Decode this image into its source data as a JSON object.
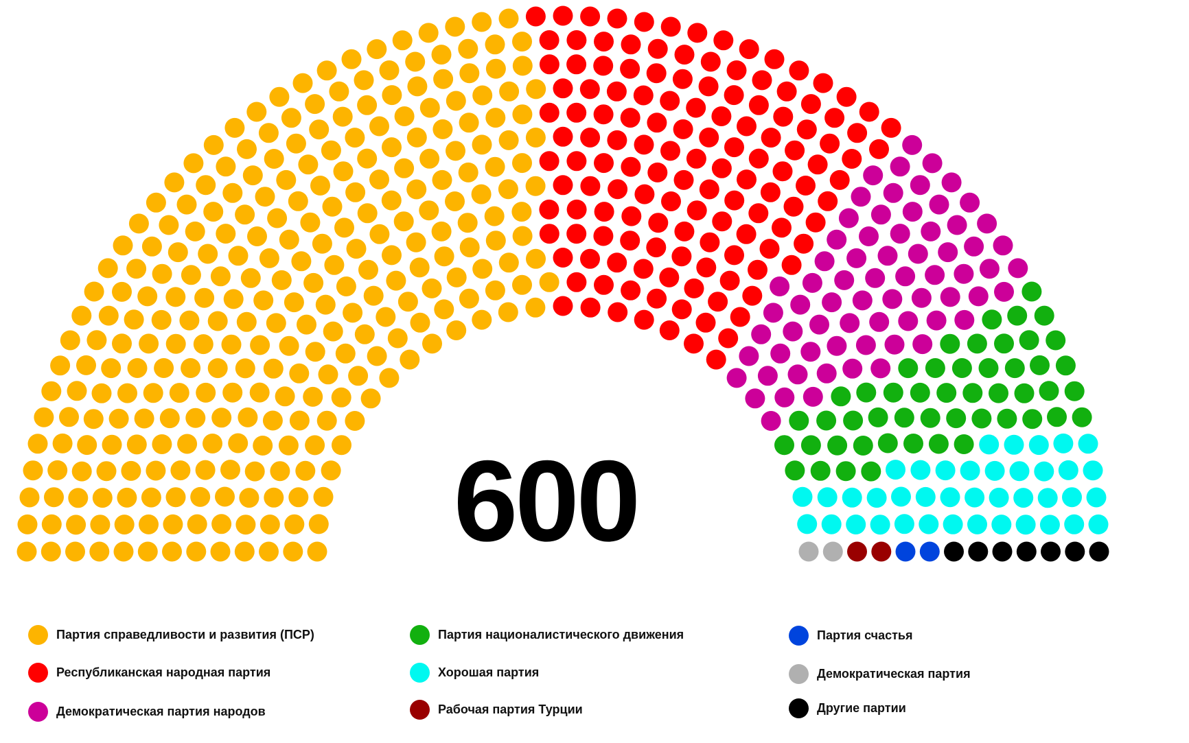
{
  "chart_data": {
    "type": "pie",
    "total_label": "600",
    "total": 600,
    "series": [
      {
        "name": "Партия справедливости и развития (ПСР)",
        "value": 290,
        "color": "#FDB400"
      },
      {
        "name": "Республиканская народная партия",
        "value": 138,
        "color": "#FF0000"
      },
      {
        "name": "Демократическая партия народов",
        "value": 69,
        "color": "#CC0099"
      },
      {
        "name": "Партия националистического движения",
        "value": 50,
        "color": "#12B00F"
      },
      {
        "name": "Хорошая партия",
        "value": 40,
        "color": "#00F8F0"
      },
      {
        "name": "Демократическая партия",
        "value": 2,
        "color": "#B0B0B0"
      },
      {
        "name": "Рабочая партия Турции",
        "value": 2,
        "color": "#990000"
      },
      {
        "name": "Партия счастья",
        "value": 2,
        "color": "#0044DD"
      },
      {
        "name": "Другие партии",
        "value": 7,
        "color": "#000000"
      }
    ],
    "legend": [
      {
        "label": "Партия справедливости и развития (ПСР)",
        "color": "#FDB400"
      },
      {
        "label": "Республиканская народная партия",
        "color": "#FF0000"
      },
      {
        "label": "Демократическая партия народов",
        "color": "#CC0099"
      },
      {
        "label": "Партия националистического движения",
        "color": "#12B00F"
      },
      {
        "label": "Хорошая партия",
        "color": "#00F8F0"
      },
      {
        "label": "Рабочая партия Турции",
        "color": "#990000"
      },
      {
        "label": "Партия счастья",
        "color": "#0044DD"
      },
      {
        "label": "Демократическая партия",
        "color": "#B0B0B0"
      },
      {
        "label": "Другие партии",
        "color": "#000000"
      }
    ],
    "legend_placement": "bottom"
  }
}
